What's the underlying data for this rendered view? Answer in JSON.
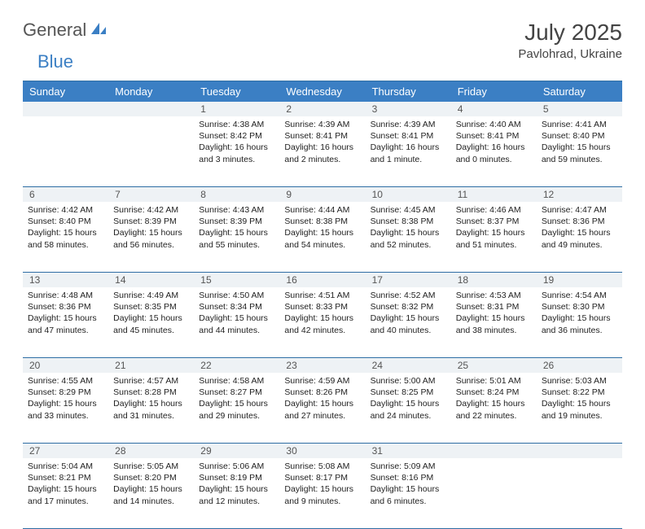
{
  "logo": {
    "part1": "General",
    "part2": "Blue"
  },
  "title": "July 2025",
  "location": "Pavlohrad, Ukraine",
  "colors": {
    "header_bg": "#3b7fc4",
    "header_text": "#ffffff",
    "daynum_bg": "#eef2f5",
    "border": "#2e6da4"
  },
  "day_names": [
    "Sunday",
    "Monday",
    "Tuesday",
    "Wednesday",
    "Thursday",
    "Friday",
    "Saturday"
  ],
  "weeks": [
    [
      null,
      null,
      {
        "n": "1",
        "sr": "4:38 AM",
        "ss": "8:42 PM",
        "dl": "16 hours and 3 minutes."
      },
      {
        "n": "2",
        "sr": "4:39 AM",
        "ss": "8:41 PM",
        "dl": "16 hours and 2 minutes."
      },
      {
        "n": "3",
        "sr": "4:39 AM",
        "ss": "8:41 PM",
        "dl": "16 hours and 1 minute."
      },
      {
        "n": "4",
        "sr": "4:40 AM",
        "ss": "8:41 PM",
        "dl": "16 hours and 0 minutes."
      },
      {
        "n": "5",
        "sr": "4:41 AM",
        "ss": "8:40 PM",
        "dl": "15 hours and 59 minutes."
      }
    ],
    [
      {
        "n": "6",
        "sr": "4:42 AM",
        "ss": "8:40 PM",
        "dl": "15 hours and 58 minutes."
      },
      {
        "n": "7",
        "sr": "4:42 AM",
        "ss": "8:39 PM",
        "dl": "15 hours and 56 minutes."
      },
      {
        "n": "8",
        "sr": "4:43 AM",
        "ss": "8:39 PM",
        "dl": "15 hours and 55 minutes."
      },
      {
        "n": "9",
        "sr": "4:44 AM",
        "ss": "8:38 PM",
        "dl": "15 hours and 54 minutes."
      },
      {
        "n": "10",
        "sr": "4:45 AM",
        "ss": "8:38 PM",
        "dl": "15 hours and 52 minutes."
      },
      {
        "n": "11",
        "sr": "4:46 AM",
        "ss": "8:37 PM",
        "dl": "15 hours and 51 minutes."
      },
      {
        "n": "12",
        "sr": "4:47 AM",
        "ss": "8:36 PM",
        "dl": "15 hours and 49 minutes."
      }
    ],
    [
      {
        "n": "13",
        "sr": "4:48 AM",
        "ss": "8:36 PM",
        "dl": "15 hours and 47 minutes."
      },
      {
        "n": "14",
        "sr": "4:49 AM",
        "ss": "8:35 PM",
        "dl": "15 hours and 45 minutes."
      },
      {
        "n": "15",
        "sr": "4:50 AM",
        "ss": "8:34 PM",
        "dl": "15 hours and 44 minutes."
      },
      {
        "n": "16",
        "sr": "4:51 AM",
        "ss": "8:33 PM",
        "dl": "15 hours and 42 minutes."
      },
      {
        "n": "17",
        "sr": "4:52 AM",
        "ss": "8:32 PM",
        "dl": "15 hours and 40 minutes."
      },
      {
        "n": "18",
        "sr": "4:53 AM",
        "ss": "8:31 PM",
        "dl": "15 hours and 38 minutes."
      },
      {
        "n": "19",
        "sr": "4:54 AM",
        "ss": "8:30 PM",
        "dl": "15 hours and 36 minutes."
      }
    ],
    [
      {
        "n": "20",
        "sr": "4:55 AM",
        "ss": "8:29 PM",
        "dl": "15 hours and 33 minutes."
      },
      {
        "n": "21",
        "sr": "4:57 AM",
        "ss": "8:28 PM",
        "dl": "15 hours and 31 minutes."
      },
      {
        "n": "22",
        "sr": "4:58 AM",
        "ss": "8:27 PM",
        "dl": "15 hours and 29 minutes."
      },
      {
        "n": "23",
        "sr": "4:59 AM",
        "ss": "8:26 PM",
        "dl": "15 hours and 27 minutes."
      },
      {
        "n": "24",
        "sr": "5:00 AM",
        "ss": "8:25 PM",
        "dl": "15 hours and 24 minutes."
      },
      {
        "n": "25",
        "sr": "5:01 AM",
        "ss": "8:24 PM",
        "dl": "15 hours and 22 minutes."
      },
      {
        "n": "26",
        "sr": "5:03 AM",
        "ss": "8:22 PM",
        "dl": "15 hours and 19 minutes."
      }
    ],
    [
      {
        "n": "27",
        "sr": "5:04 AM",
        "ss": "8:21 PM",
        "dl": "15 hours and 17 minutes."
      },
      {
        "n": "28",
        "sr": "5:05 AM",
        "ss": "8:20 PM",
        "dl": "15 hours and 14 minutes."
      },
      {
        "n": "29",
        "sr": "5:06 AM",
        "ss": "8:19 PM",
        "dl": "15 hours and 12 minutes."
      },
      {
        "n": "30",
        "sr": "5:08 AM",
        "ss": "8:17 PM",
        "dl": "15 hours and 9 minutes."
      },
      {
        "n": "31",
        "sr": "5:09 AM",
        "ss": "8:16 PM",
        "dl": "15 hours and 6 minutes."
      },
      null,
      null
    ]
  ],
  "labels": {
    "sunrise": "Sunrise:",
    "sunset": "Sunset:",
    "daylight": "Daylight:"
  }
}
